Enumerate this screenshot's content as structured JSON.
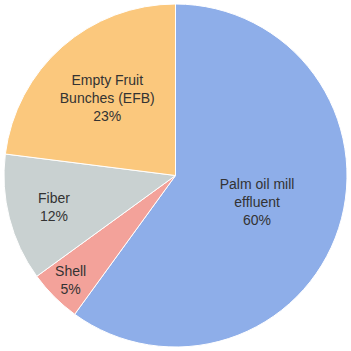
{
  "chart_data": {
    "type": "pie",
    "categories": [
      "Palm oil mill effluent",
      "Shell",
      "Fiber",
      "Empty Fruit Bunches (EFB)"
    ],
    "values": [
      60,
      5,
      12,
      23
    ],
    "value_labels": [
      "60%",
      "5%",
      "12%",
      "23%"
    ],
    "colors": [
      "#8eaee9",
      "#f3a29a",
      "#c9d1d1",
      "#fbc87d"
    ],
    "data_labels": true
  }
}
